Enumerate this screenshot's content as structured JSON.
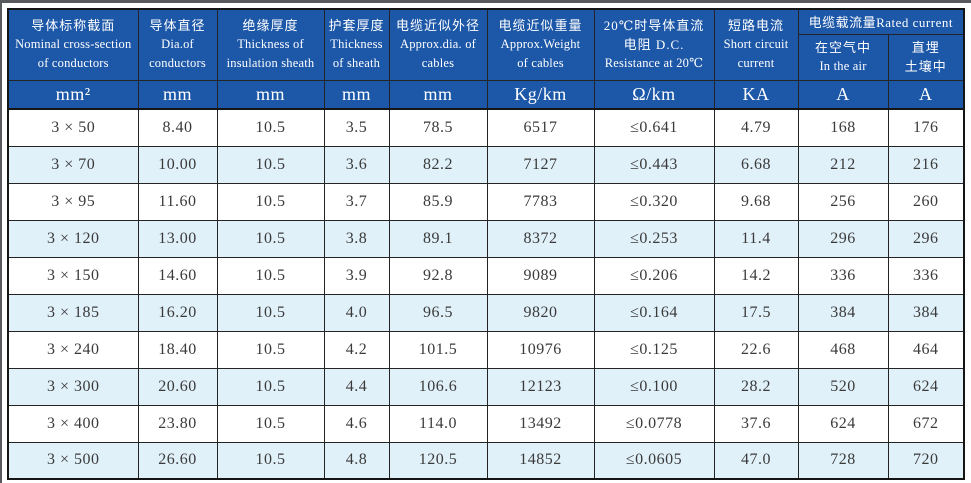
{
  "colors": {
    "header_bg": "#1c57a8",
    "header_text": "#ffffff",
    "row_alt_bg": "#e1f1fa",
    "body_text": "#3a3a3a",
    "grid_border": "#242424",
    "page_frame": "#58595c"
  },
  "table": {
    "header": {
      "cols": [
        {
          "line1": "导体标称截面",
          "line2": "Nominal cross-section",
          "line3": "of conductors"
        },
        {
          "line1": "导体直径",
          "line2": "Dia.of",
          "line3": "conductors"
        },
        {
          "line1": "绝缘厚度",
          "line2": "Thickness of",
          "line3": "insulation sheath"
        },
        {
          "line1": "护套厚度",
          "line2": "Thickness",
          "line3": "of sheath"
        },
        {
          "line1": "电缆近似外径",
          "line2": "Approx.dia. of",
          "line3": "cables"
        },
        {
          "line1": "电缆近似重量",
          "line2": "Approx.Weight",
          "line3": "of cables"
        },
        {
          "line1": "20℃时导体直流",
          "line2": "电阻 D.C.",
          "line3": "Resistance at 20℃"
        },
        {
          "line1": "短路电流",
          "line2": "Short circuit",
          "line3": "current"
        }
      ],
      "rated_current_group": {
        "title": "电缆载流量Rated current",
        "sub": [
          {
            "line1": "在空气中",
            "line2": "In the air"
          },
          {
            "line1": "直埋",
            "line2": "土壤中"
          }
        ]
      },
      "units": [
        "mm²",
        "mm",
        "mm",
        "mm",
        "mm",
        "Kg/km",
        "Ω/km",
        "KA",
        "A",
        "A"
      ]
    },
    "rows": [
      [
        "3 × 50",
        "8.40",
        "10.5",
        "3.5",
        "78.5",
        "6517",
        "≤0.641",
        "4.79",
        "168",
        "176"
      ],
      [
        "3 × 70",
        "10.00",
        "10.5",
        "3.6",
        "82.2",
        "7127",
        "≤0.443",
        "6.68",
        "212",
        "216"
      ],
      [
        "3 × 95",
        "11.60",
        "10.5",
        "3.7",
        "85.9",
        "7783",
        "≤0.320",
        "9.68",
        "256",
        "260"
      ],
      [
        "3 × 120",
        "13.00",
        "10.5",
        "3.8",
        "89.1",
        "8372",
        "≤0.253",
        "11.4",
        "296",
        "296"
      ],
      [
        "3 × 150",
        "14.60",
        "10.5",
        "3.9",
        "92.8",
        "9089",
        "≤0.206",
        "14.2",
        "336",
        "336"
      ],
      [
        "3 × 185",
        "16.20",
        "10.5",
        "4.0",
        "96.5",
        "9820",
        "≤0.164",
        "17.5",
        "384",
        "384"
      ],
      [
        "3 × 240",
        "18.40",
        "10.5",
        "4.2",
        "101.5",
        "10976",
        "≤0.125",
        "22.6",
        "468",
        "464"
      ],
      [
        "3 × 300",
        "20.60",
        "10.5",
        "4.4",
        "106.6",
        "12123",
        "≤0.100",
        "28.2",
        "520",
        "624"
      ],
      [
        "3 × 400",
        "23.80",
        "10.5",
        "4.6",
        "114.0",
        "13492",
        "≤0.0778",
        "37.6",
        "624",
        "672"
      ],
      [
        "3 × 500",
        "26.60",
        "10.5",
        "4.8",
        "120.5",
        "14852",
        "≤0.0605",
        "47.0",
        "728",
        "720"
      ]
    ]
  }
}
